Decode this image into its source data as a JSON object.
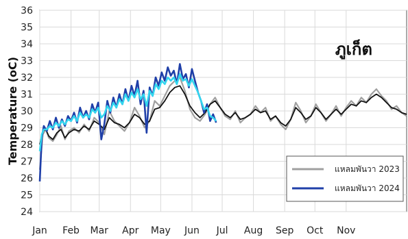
{
  "chart_data": {
    "type": "line",
    "title": "",
    "place_label": "ภูเก็ต",
    "ylabel": "Temperature (oC)",
    "xlabel": "",
    "ylim": [
      24,
      36
    ],
    "yticks": [
      24,
      25,
      26,
      27,
      28,
      29,
      30,
      31,
      32,
      33,
      34,
      35,
      36
    ],
    "xlim": [
      1,
      365
    ],
    "month_ticks": [
      {
        "label": "Jan",
        "day": 1
      },
      {
        "label": "Feb",
        "day": 32
      },
      {
        "label": "Mar",
        "day": 60
      },
      {
        "label": "Apr",
        "day": 91
      },
      {
        "label": "May",
        "day": 121
      },
      {
        "label": "Jun",
        "day": 152
      },
      {
        "label": "Jul",
        "day": 182
      },
      {
        "label": "Aug",
        "day": 213
      },
      {
        "label": "Sep",
        "day": 244
      },
      {
        "label": "Oct",
        "day": 274
      },
      {
        "label": "Nov",
        "day": 305
      }
    ],
    "grid": true,
    "legend_position": "bottom-right",
    "series": [
      {
        "name": "แหลมพันวา 2023",
        "color": "#a0a0a0",
        "x": [
          1,
          4,
          7,
          10,
          14,
          18,
          22,
          26,
          30,
          35,
          40,
          45,
          50,
          55,
          60,
          65,
          70,
          75,
          80,
          85,
          90,
          95,
          100,
          105,
          110,
          115,
          120,
          125,
          130,
          135,
          140,
          145,
          150,
          155,
          160,
          165,
          170,
          175,
          180,
          185,
          190,
          195,
          200,
          205,
          210,
          215,
          220,
          225,
          230,
          235,
          240,
          245,
          250,
          255,
          260,
          265,
          270,
          275,
          280,
          285,
          290,
          295,
          300,
          305,
          310,
          315,
          320,
          325,
          330,
          335,
          340,
          345,
          350,
          355,
          360,
          365
        ],
        "values": [
          26.5,
          28.6,
          28.9,
          28.4,
          28.2,
          28.6,
          29.1,
          28.3,
          28.8,
          29.0,
          28.7,
          29.2,
          28.8,
          29.6,
          29.3,
          28.6,
          30.0,
          29.4,
          29.1,
          28.8,
          29.3,
          30.2,
          29.7,
          29.0,
          29.4,
          30.6,
          30.3,
          30.9,
          31.5,
          31.8,
          32.0,
          31.2,
          30.1,
          29.6,
          29.4,
          29.8,
          30.4,
          30.8,
          30.2,
          29.7,
          29.5,
          30.0,
          29.3,
          29.6,
          29.8,
          30.3,
          29.9,
          30.2,
          29.4,
          29.7,
          29.2,
          28.9,
          29.5,
          30.5,
          30.0,
          29.3,
          29.7,
          30.4,
          29.9,
          29.4,
          29.8,
          30.3,
          29.7,
          30.2,
          30.6,
          30.3,
          30.8,
          30.5,
          31.0,
          31.3,
          30.9,
          30.6,
          30.1,
          30.3,
          29.9,
          29.7
        ]
      },
      {
        "name": "",
        "color": "#111111",
        "x": [
          1,
          4,
          7,
          10,
          14,
          18,
          22,
          26,
          30,
          35,
          40,
          45,
          50,
          55,
          60,
          65,
          70,
          75,
          80,
          85,
          90,
          95,
          100,
          105,
          110,
          115,
          120,
          125,
          130,
          135,
          140,
          145,
          150,
          155,
          160,
          165,
          170,
          175,
          180,
          185,
          190,
          195,
          200,
          205,
          210,
          215,
          220,
          225,
          230,
          235,
          240,
          245,
          250,
          255,
          260,
          265,
          270,
          275,
          280,
          285,
          290,
          295,
          300,
          305,
          310,
          315,
          320,
          325,
          330,
          335,
          340,
          345,
          350,
          355,
          360,
          365
        ],
        "values": [
          28.0,
          28.8,
          28.9,
          28.5,
          28.3,
          28.7,
          28.9,
          28.4,
          28.7,
          28.9,
          28.8,
          29.1,
          28.9,
          29.4,
          29.2,
          28.9,
          29.6,
          29.3,
          29.2,
          29.0,
          29.3,
          29.8,
          29.6,
          29.2,
          29.4,
          30.1,
          30.2,
          30.6,
          31.1,
          31.4,
          31.5,
          31.0,
          30.3,
          29.9,
          29.6,
          29.9,
          30.4,
          30.6,
          30.2,
          29.8,
          29.6,
          29.9,
          29.5,
          29.6,
          29.8,
          30.1,
          29.9,
          30.0,
          29.5,
          29.7,
          29.3,
          29.1,
          29.5,
          30.2,
          29.9,
          29.5,
          29.7,
          30.2,
          29.9,
          29.5,
          29.8,
          30.1,
          29.8,
          30.1,
          30.4,
          30.3,
          30.6,
          30.5,
          30.8,
          31.0,
          30.8,
          30.5,
          30.2,
          30.1,
          29.9,
          29.8
        ]
      },
      {
        "name": "แหลมพันวา 2024",
        "color": "#1f3fa8",
        "x": [
          1,
          3,
          5,
          8,
          11,
          14,
          17,
          20,
          23,
          26,
          29,
          32,
          35,
          38,
          41,
          44,
          47,
          50,
          53,
          56,
          59,
          62,
          65,
          68,
          71,
          74,
          77,
          80,
          83,
          86,
          89,
          92,
          95,
          98,
          101,
          104,
          107,
          110,
          113,
          116,
          119,
          122,
          125,
          128,
          131,
          134,
          137,
          140,
          143,
          146,
          149,
          152,
          155,
          158,
          161,
          164,
          167,
          170,
          173,
          176
        ],
        "values": [
          25.8,
          28.4,
          29.1,
          28.8,
          29.4,
          28.9,
          29.6,
          29.0,
          29.5,
          29.1,
          29.7,
          29.4,
          29.9,
          29.3,
          30.2,
          29.6,
          30.0,
          29.5,
          30.4,
          29.9,
          30.5,
          28.3,
          29.2,
          30.6,
          29.9,
          30.8,
          30.2,
          31.0,
          30.4,
          31.3,
          30.6,
          31.5,
          30.9,
          31.8,
          30.4,
          31.2,
          28.7,
          31.4,
          30.9,
          32.0,
          31.5,
          32.3,
          31.8,
          32.6,
          32.1,
          32.4,
          31.6,
          32.8,
          31.9,
          32.2,
          31.4,
          32.5,
          31.8,
          31.1,
          30.6,
          29.9,
          30.4,
          29.4,
          29.8,
          29.3
        ]
      },
      {
        "name": "",
        "color": "#33d6ef",
        "x": [
          1,
          3,
          5,
          8,
          11,
          14,
          17,
          20,
          23,
          26,
          29,
          32,
          35,
          38,
          41,
          44,
          47,
          50,
          53,
          56,
          59,
          62,
          65,
          68,
          71,
          74,
          77,
          80,
          83,
          86,
          89,
          92,
          95,
          98,
          101,
          104,
          107,
          110,
          113,
          116,
          119,
          122,
          125,
          128,
          131,
          134,
          137,
          140,
          143,
          146,
          149,
          152,
          155,
          158,
          161,
          164,
          167,
          170,
          173,
          176
        ],
        "values": [
          27.6,
          28.6,
          28.9,
          28.9,
          29.1,
          29.0,
          29.3,
          29.1,
          29.4,
          29.2,
          29.5,
          29.4,
          29.7,
          29.4,
          29.9,
          29.6,
          29.8,
          29.6,
          30.1,
          29.9,
          30.2,
          29.6,
          29.8,
          30.3,
          30.0,
          30.5,
          30.2,
          30.7,
          30.4,
          31.0,
          30.6,
          31.1,
          30.8,
          31.3,
          30.7,
          31.0,
          30.3,
          31.2,
          30.9,
          31.6,
          31.3,
          31.8,
          31.6,
          32.0,
          31.8,
          32.0,
          31.6,
          32.2,
          31.8,
          31.9,
          31.5,
          31.9,
          31.5,
          31.1,
          30.6,
          30.1,
          30.2,
          29.7,
          29.6,
          29.4
        ]
      }
    ]
  }
}
